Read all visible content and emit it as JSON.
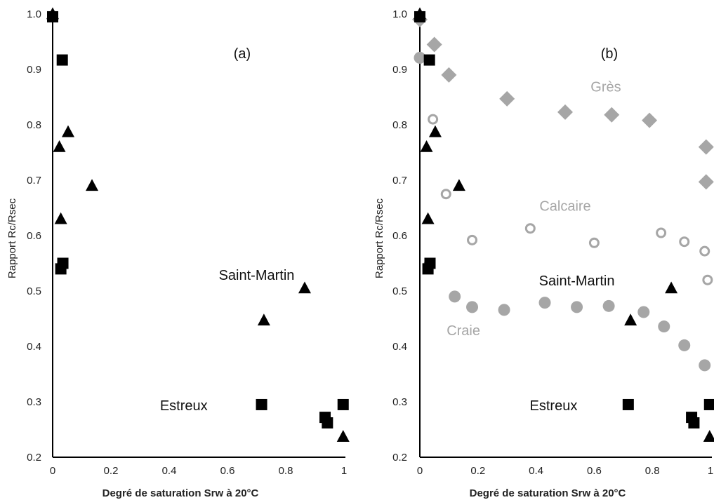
{
  "chart_data": [
    {
      "type": "scatter",
      "panel_label": "(a)",
      "xlabel": "Degré de saturation Srw à 20°C",
      "ylabel": "Rapport Rc/Rsec",
      "xlim": [
        0,
        1
      ],
      "ylim": [
        0.2,
        1.0
      ],
      "x_ticks": [
        "0",
        "0.2",
        "0.4",
        "0.6",
        "0.8",
        "1"
      ],
      "y_ticks": [
        "0.2",
        "0.3",
        "0.4",
        "0.5",
        "0.6",
        "0.7",
        "0.8",
        "0.9",
        "1.0"
      ],
      "grid": false,
      "annotations": [
        {
          "text": "Saint-Martin",
          "x": 0.7,
          "y": 0.52,
          "color": "#111111"
        },
        {
          "text": "Estreux",
          "x": 0.45,
          "y": 0.285,
          "color": "#111111"
        }
      ],
      "series": [
        {
          "marker": "triangle",
          "color": "#000000",
          "points": [
            [
              0.0,
              1.0
            ],
            [
              0.023,
              0.76
            ],
            [
              0.053,
              0.787
            ],
            [
              0.028,
              0.63
            ],
            [
              0.135,
              0.69
            ],
            [
              0.725,
              0.447
            ],
            [
              0.865,
              0.505
            ],
            [
              0.997,
              0.237
            ]
          ]
        },
        {
          "marker": "square",
          "color": "#000000",
          "points": [
            [
              0.0,
              0.995
            ],
            [
              0.033,
              0.917
            ],
            [
              0.035,
              0.55
            ],
            [
              0.028,
              0.54
            ],
            [
              0.717,
              0.295
            ],
            [
              0.935,
              0.272
            ],
            [
              0.943,
              0.262
            ],
            [
              0.997,
              0.295
            ]
          ]
        }
      ]
    },
    {
      "type": "scatter",
      "panel_label": "(b)",
      "xlabel": "Degré de saturation Srw à 20°C",
      "ylabel": "Rapport Rc/Rsec",
      "xlim": [
        0,
        1
      ],
      "ylim": [
        0.2,
        1.0
      ],
      "x_ticks": [
        "0",
        "0.2",
        "0.4",
        "0.6",
        "0.8",
        "1"
      ],
      "y_ticks": [
        "0.2",
        "0.3",
        "0.4",
        "0.5",
        "0.6",
        "0.7",
        "0.8",
        "0.9",
        "1.0"
      ],
      "grid": false,
      "annotations": [
        {
          "text": "Grès",
          "x": 0.64,
          "y": 0.86,
          "color": "#a6a6a6"
        },
        {
          "text": "Calcaire",
          "x": 0.5,
          "y": 0.645,
          "color": "#a6a6a6"
        },
        {
          "text": "Saint-Martin",
          "x": 0.54,
          "y": 0.51,
          "color": "#111111"
        },
        {
          "text": "Craie",
          "x": 0.15,
          "y": 0.42,
          "color": "#a6a6a6"
        },
        {
          "text": "Estreux",
          "x": 0.46,
          "y": 0.285,
          "color": "#111111"
        }
      ],
      "series": [
        {
          "marker": "diamond",
          "color": "#a6a6a6",
          "points": [
            [
              0.0,
              0.99
            ],
            [
              0.05,
              0.945
            ],
            [
              0.1,
              0.89
            ],
            [
              0.3,
              0.847
            ],
            [
              0.5,
              0.823
            ],
            [
              0.66,
              0.818
            ],
            [
              0.79,
              0.808
            ],
            [
              0.985,
              0.76
            ],
            [
              0.985,
              0.697
            ]
          ]
        },
        {
          "marker": "open-circle",
          "color": "#a6a6a6",
          "points": [
            [
              0.0,
              0.993
            ],
            [
              0.045,
              0.81
            ],
            [
              0.09,
              0.675
            ],
            [
              0.18,
              0.592
            ],
            [
              0.38,
              0.613
            ],
            [
              0.6,
              0.587
            ],
            [
              0.83,
              0.605
            ],
            [
              0.91,
              0.589
            ],
            [
              0.98,
              0.572
            ],
            [
              0.99,
              0.52
            ],
            [
              0.03,
              0.547
            ]
          ]
        },
        {
          "marker": "filled-circle",
          "color": "#a6a6a6",
          "points": [
            [
              0.0,
              0.921
            ],
            [
              0.12,
              0.49
            ],
            [
              0.18,
              0.471
            ],
            [
              0.29,
              0.466
            ],
            [
              0.43,
              0.479
            ],
            [
              0.54,
              0.471
            ],
            [
              0.65,
              0.473
            ],
            [
              0.77,
              0.462
            ],
            [
              0.84,
              0.436
            ],
            [
              0.91,
              0.402
            ],
            [
              0.98,
              0.366
            ]
          ]
        },
        {
          "marker": "triangle",
          "color": "#000000",
          "points": [
            [
              0.0,
              1.0
            ],
            [
              0.023,
              0.76
            ],
            [
              0.053,
              0.787
            ],
            [
              0.028,
              0.63
            ],
            [
              0.135,
              0.69
            ],
            [
              0.725,
              0.447
            ],
            [
              0.865,
              0.505
            ],
            [
              0.997,
              0.237
            ]
          ]
        },
        {
          "marker": "square",
          "color": "#000000",
          "points": [
            [
              0.0,
              0.995
            ],
            [
              0.033,
              0.917
            ],
            [
              0.035,
              0.55
            ],
            [
              0.028,
              0.54
            ],
            [
              0.717,
              0.295
            ],
            [
              0.935,
              0.272
            ],
            [
              0.943,
              0.262
            ],
            [
              0.997,
              0.295
            ]
          ]
        }
      ]
    }
  ]
}
